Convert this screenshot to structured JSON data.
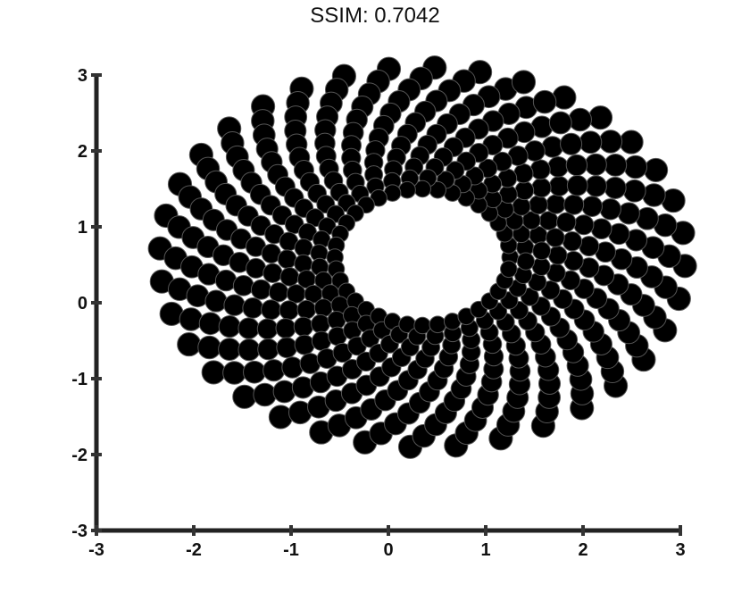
{
  "chart_data": {
    "type": "scatter",
    "title": "SSIM: 0.7042",
    "xlabel": "",
    "ylabel": "",
    "xlim": [
      -3,
      3
    ],
    "ylim": [
      -3,
      3
    ],
    "grid": false,
    "marker_color": "#000000",
    "marker_shape": "circle",
    "x_ticks": [
      -3,
      -2,
      -1,
      0,
      1,
      2,
      3
    ],
    "y_ticks": [
      -3,
      -2,
      -1,
      0,
      1,
      2,
      3
    ],
    "x_tick_labels": [
      "-3",
      "-2",
      "-1",
      "0",
      "1",
      "2",
      "3"
    ],
    "y_tick_labels": [
      "-3",
      "-2",
      "-1",
      "0",
      "1",
      "2",
      "3"
    ],
    "pattern": {
      "description": "rotated spiral of circular markers forming a tilted ring",
      "arms": 36,
      "points_per_arm": 12,
      "center": [
        0.35,
        0.6
      ],
      "inner_radius_x": 0.9,
      "inner_radius_y": 0.9,
      "outer_radius_x": 2.7,
      "outer_radius_y": 2.5,
      "twist_radians": 1.35
    }
  }
}
